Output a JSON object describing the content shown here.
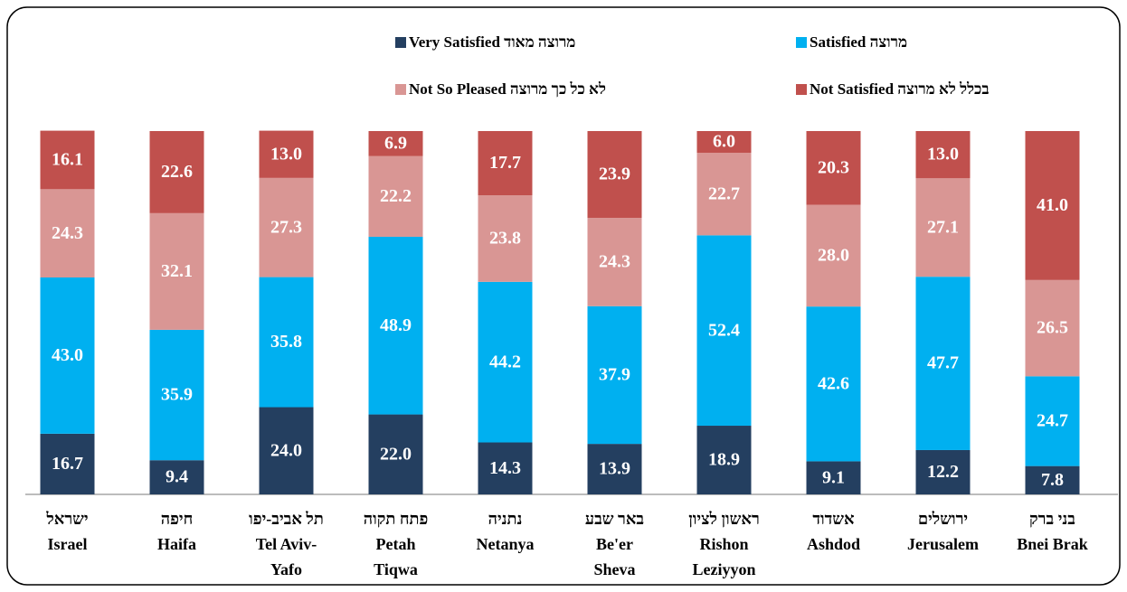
{
  "chart_data": {
    "type": "stacked_bar",
    "categories": [
      [
        "ישראל",
        "Israel"
      ],
      [
        "חיפה",
        "Haifa"
      ],
      [
        "תל אביב-יפו",
        "Tel Aviv-",
        "Yafo"
      ],
      [
        "פתח תקוה",
        "Petah",
        "Tiqwa"
      ],
      [
        "נתניה",
        "Netanya"
      ],
      [
        "באר שבע",
        "Be'er",
        "Sheva"
      ],
      [
        "ראשון לציון",
        "Rishon",
        "Leziyyon"
      ],
      [
        "אשדוד",
        "Ashdod"
      ],
      [
        "ירושלים",
        "Jerusalem"
      ],
      [
        "בני ברק",
        "Bnei Brak"
      ]
    ],
    "series": [
      {
        "name": "Very Satisfied מרוצה מאוד",
        "color": "#243f60",
        "values": [
          16.7,
          9.4,
          24.0,
          22.0,
          14.3,
          13.9,
          18.9,
          9.1,
          12.2,
          7.8
        ],
        "value_labels": [
          "16.7",
          "9.4",
          "24.0",
          "22.0",
          "14.3",
          "13.9",
          "18.9",
          "9.1",
          "12.2",
          "7.8"
        ]
      },
      {
        "name": "Satisfied מרוצה",
        "color": "#00b0f0",
        "values": [
          43.0,
          35.9,
          35.8,
          48.9,
          44.2,
          37.9,
          52.4,
          42.6,
          47.7,
          24.7
        ],
        "value_labels": [
          "43.0",
          "35.9",
          "35.8",
          "48.9",
          "44.2",
          "37.9",
          "52.4",
          "42.6",
          "47.7",
          "24.7"
        ]
      },
      {
        "name": "Not So Pleased לא כל כך מרוצה",
        "color": "#d99694",
        "values": [
          24.3,
          32.1,
          27.3,
          22.2,
          23.8,
          24.3,
          22.7,
          28.0,
          27.1,
          26.5
        ],
        "value_labels": [
          "24.3",
          "32.1",
          "27.3",
          "22.2",
          "23.8",
          "24.3",
          "22.7",
          "28.0",
          "27.1",
          "26.5"
        ]
      },
      {
        "name": "Not Satisfied בכלל לא מרוצה",
        "color": "#c0504d",
        "values": [
          16.1,
          22.6,
          13.0,
          6.9,
          17.7,
          23.9,
          6.0,
          20.3,
          13.0,
          41.0
        ],
        "value_labels": [
          "16.1",
          "22.6",
          "13.0",
          "6.9",
          "17.7",
          "23.9",
          "6.0",
          "20.3",
          "13.0",
          "41.0"
        ]
      }
    ],
    "ylim": [
      0,
      100
    ]
  }
}
